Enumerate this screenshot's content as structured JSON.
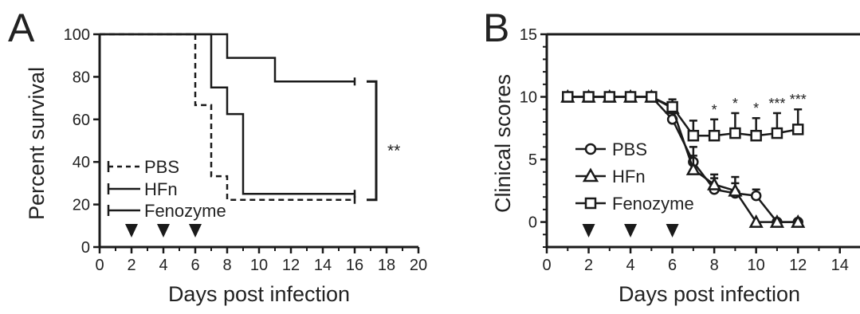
{
  "chart_data": [
    {
      "panel": "A",
      "type": "line",
      "xlabel": "Days post infection",
      "ylabel": "Percent survival",
      "xlim": [
        0,
        20
      ],
      "ylim": [
        0,
        100
      ],
      "x_ticks": [
        0,
        2,
        4,
        6,
        8,
        10,
        12,
        14,
        16,
        18,
        20
      ],
      "y_ticks": [
        0,
        20,
        40,
        60,
        80,
        100
      ],
      "series": [
        {
          "name": "PBS",
          "style": "dashed",
          "x": [
            0,
            6,
            6,
            7,
            7,
            8,
            8,
            16
          ],
          "y": [
            100,
            100,
            66.7,
            66.7,
            33.3,
            33.3,
            22.2,
            22.2
          ]
        },
        {
          "name": "HFn",
          "style": "solid",
          "x": [
            0,
            7,
            7,
            8,
            8,
            9,
            9,
            16
          ],
          "y": [
            100,
            100,
            75,
            75,
            62.5,
            62.5,
            25,
            25
          ]
        },
        {
          "name": "Fenozyme",
          "style": "solid",
          "x": [
            0,
            8,
            8,
            11,
            11,
            16
          ],
          "y": [
            100,
            100,
            88.9,
            88.9,
            77.8,
            77.8
          ]
        }
      ],
      "dosing_days": [
        2,
        4,
        6
      ],
      "significance": {
        "label": "**",
        "between": [
          "Fenozyme",
          "PBS"
        ]
      },
      "legend": "bottom-left"
    },
    {
      "panel": "B",
      "type": "line",
      "xlabel": "Days post infection",
      "ylabel": "Clinical scores",
      "xlim": [
        0,
        15
      ],
      "ylim": [
        -2,
        15
      ],
      "x_ticks": [
        0,
        2,
        4,
        6,
        8,
        10,
        12,
        14
      ],
      "y_ticks": [
        0,
        5,
        10,
        15
      ],
      "x": [
        1,
        2,
        3,
        4,
        5,
        6,
        7,
        8,
        9,
        10,
        11,
        12
      ],
      "series": [
        {
          "name": "PBS",
          "marker": "circle",
          "values": [
            10,
            10,
            10,
            10,
            10,
            8.2,
            4.8,
            2.6,
            2.3,
            2.1,
            0,
            0
          ],
          "err": [
            0,
            0,
            0,
            0,
            0,
            0.5,
            1.2,
            0.9,
            0.8,
            0.5,
            0,
            0
          ]
        },
        {
          "name": "HFn",
          "marker": "triangle",
          "values": [
            10,
            10,
            10,
            10,
            10,
            9.1,
            4.2,
            3.0,
            2.5,
            0,
            0,
            0
          ],
          "err": [
            0,
            0,
            0,
            0,
            0,
            0.4,
            1.1,
            0.8,
            1.1,
            0,
            0,
            0
          ]
        },
        {
          "name": "Fenozyme",
          "marker": "square",
          "values": [
            10,
            10,
            10,
            10,
            10,
            9.2,
            6.9,
            6.9,
            7.1,
            6.9,
            7.1,
            7.4
          ],
          "err": [
            0,
            0,
            0,
            0,
            0,
            0.6,
            1.2,
            1.3,
            1.6,
            1.4,
            1.6,
            1.6
          ]
        }
      ],
      "dosing_days": [
        2,
        4,
        6
      ],
      "significance": [
        {
          "x": 8,
          "label": "*"
        },
        {
          "x": 9,
          "label": "*"
        },
        {
          "x": 10,
          "label": "*"
        },
        {
          "x": 11,
          "label": "***"
        },
        {
          "x": 12,
          "label": "***"
        }
      ],
      "legend": "center-left"
    }
  ],
  "colors": {
    "ink": "#1a1a1a"
  }
}
